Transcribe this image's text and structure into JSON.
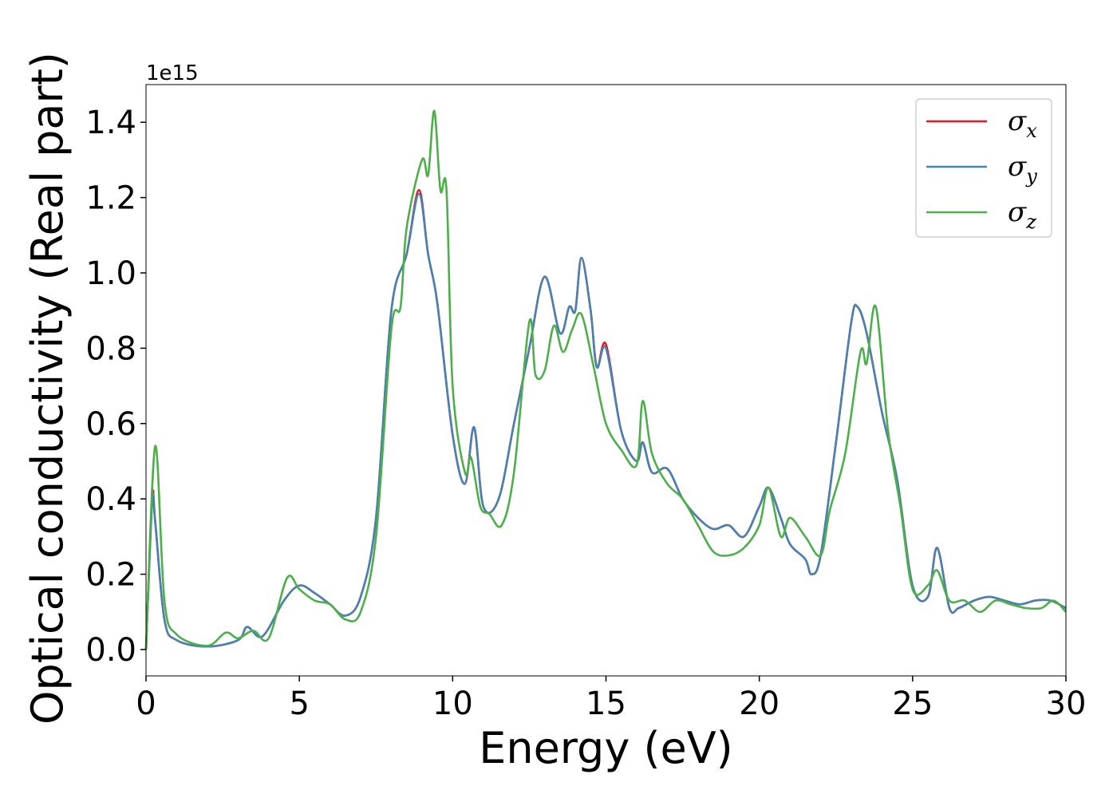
{
  "chart_data": {
    "type": "line",
    "xlabel": "Energy (eV)",
    "ylabel": "Optical conductivity (Real part)",
    "y_offset_label": "1e15",
    "xlim": [
      0,
      30
    ],
    "ylim": [
      -0.07,
      1.5
    ],
    "x_ticks": [
      0,
      5,
      10,
      15,
      20,
      25,
      30
    ],
    "x_tick_labels": [
      "0",
      "5",
      "10",
      "15",
      "20",
      "25",
      "30"
    ],
    "y_ticks": [
      0.0,
      0.2,
      0.4,
      0.6,
      0.8,
      1.0,
      1.2,
      1.4
    ],
    "y_tick_labels": [
      "0.0",
      "0.2",
      "0.4",
      "0.6",
      "0.8",
      "1.0",
      "1.2",
      "1.4"
    ],
    "grid": false,
    "legend_position": "top-right",
    "series": [
      {
        "name": "σx",
        "symbol": "σ",
        "subscript": "x",
        "color": "#e41a1c",
        "x": [
          0,
          0.2,
          0.3,
          0.6,
          1.0,
          2.0,
          3.0,
          3.3,
          3.8,
          4.5,
          5.0,
          5.5,
          6.0,
          6.5,
          7.0,
          7.5,
          8.0,
          8.5,
          8.9,
          9.2,
          9.5,
          10.0,
          10.4,
          10.7,
          11.0,
          11.5,
          12.0,
          12.5,
          13.0,
          13.5,
          13.8,
          14.0,
          14.2,
          14.5,
          14.7,
          15.0,
          15.5,
          16.0,
          16.2,
          16.5,
          17.0,
          17.5,
          18.0,
          18.5,
          19.0,
          19.5,
          20.0,
          20.3,
          20.7,
          21.0,
          21.5,
          21.7,
          22.0,
          22.5,
          23.0,
          23.2,
          23.5,
          24.0,
          24.5,
          25.0,
          25.5,
          25.8,
          26.2,
          26.5,
          27.0,
          27.5,
          28.0,
          28.5,
          29.0,
          29.5,
          30.0
        ],
        "y": [
          0.0,
          0.4,
          0.34,
          0.08,
          0.025,
          0.008,
          0.025,
          0.06,
          0.035,
          0.13,
          0.17,
          0.15,
          0.12,
          0.09,
          0.14,
          0.35,
          0.9,
          1.05,
          1.22,
          1.05,
          0.92,
          0.57,
          0.44,
          0.59,
          0.38,
          0.4,
          0.6,
          0.8,
          0.99,
          0.84,
          0.91,
          0.9,
          1.04,
          0.9,
          0.75,
          0.81,
          0.58,
          0.5,
          0.55,
          0.47,
          0.48,
          0.4,
          0.35,
          0.32,
          0.33,
          0.3,
          0.38,
          0.43,
          0.35,
          0.28,
          0.24,
          0.2,
          0.25,
          0.55,
          0.87,
          0.91,
          0.84,
          0.63,
          0.45,
          0.17,
          0.14,
          0.27,
          0.11,
          0.11,
          0.13,
          0.14,
          0.13,
          0.12,
          0.13,
          0.13,
          0.11
        ]
      },
      {
        "name": "σy",
        "symbol": "σ",
        "subscript": "y",
        "color": "#4682b4",
        "x": [
          0,
          0.2,
          0.3,
          0.6,
          1.0,
          2.0,
          3.0,
          3.3,
          3.8,
          4.5,
          5.0,
          5.5,
          6.0,
          6.5,
          7.0,
          7.5,
          8.0,
          8.5,
          8.9,
          9.2,
          9.5,
          10.0,
          10.4,
          10.7,
          11.0,
          11.5,
          12.0,
          12.5,
          13.0,
          13.5,
          13.8,
          14.0,
          14.2,
          14.5,
          14.7,
          15.0,
          15.5,
          16.0,
          16.2,
          16.5,
          17.0,
          17.5,
          18.0,
          18.5,
          19.0,
          19.5,
          20.0,
          20.3,
          20.7,
          21.0,
          21.5,
          21.7,
          22.0,
          22.5,
          23.0,
          23.2,
          23.5,
          24.0,
          24.5,
          25.0,
          25.5,
          25.8,
          26.2,
          26.5,
          27.0,
          27.5,
          28.0,
          28.5,
          29.0,
          29.5,
          30.0
        ],
        "y": [
          0.0,
          0.39,
          0.34,
          0.08,
          0.025,
          0.008,
          0.025,
          0.06,
          0.035,
          0.13,
          0.17,
          0.15,
          0.12,
          0.09,
          0.14,
          0.35,
          0.9,
          1.05,
          1.21,
          1.05,
          0.92,
          0.57,
          0.44,
          0.59,
          0.38,
          0.4,
          0.6,
          0.8,
          0.99,
          0.84,
          0.91,
          0.9,
          1.04,
          0.9,
          0.75,
          0.8,
          0.58,
          0.5,
          0.55,
          0.47,
          0.48,
          0.4,
          0.35,
          0.32,
          0.33,
          0.3,
          0.38,
          0.43,
          0.35,
          0.28,
          0.24,
          0.2,
          0.25,
          0.55,
          0.87,
          0.91,
          0.84,
          0.63,
          0.45,
          0.17,
          0.14,
          0.27,
          0.11,
          0.11,
          0.13,
          0.14,
          0.13,
          0.12,
          0.13,
          0.13,
          0.11
        ]
      },
      {
        "name": "σz",
        "symbol": "σ",
        "subscript": "z",
        "color": "#4daf4a",
        "x": [
          0,
          0.3,
          0.6,
          1.0,
          2.0,
          2.6,
          3.0,
          3.5,
          4.0,
          4.6,
          5.0,
          5.5,
          6.0,
          6.5,
          7.0,
          7.5,
          8.0,
          8.3,
          8.5,
          9.0,
          9.2,
          9.4,
          9.6,
          9.8,
          10.0,
          10.4,
          10.6,
          10.9,
          11.2,
          11.6,
          12.0,
          12.5,
          12.7,
          13.0,
          13.3,
          13.6,
          13.9,
          14.2,
          14.6,
          15.0,
          15.5,
          16.0,
          16.2,
          16.5,
          17.0,
          17.5,
          18.0,
          18.5,
          19.0,
          19.5,
          20.0,
          20.3,
          20.7,
          21.0,
          21.5,
          22.0,
          22.3,
          22.8,
          23.3,
          23.5,
          23.8,
          24.2,
          24.6,
          25.0,
          25.5,
          25.8,
          26.2,
          26.7,
          27.2,
          27.7,
          28.2,
          28.7,
          29.2,
          29.6,
          30.0
        ],
        "y": [
          0.0,
          0.54,
          0.13,
          0.04,
          0.01,
          0.045,
          0.03,
          0.05,
          0.03,
          0.19,
          0.16,
          0.13,
          0.12,
          0.08,
          0.1,
          0.3,
          0.85,
          0.91,
          1.12,
          1.3,
          1.26,
          1.43,
          1.22,
          1.22,
          0.7,
          0.47,
          0.51,
          0.38,
          0.36,
          0.33,
          0.47,
          0.87,
          0.73,
          0.74,
          0.86,
          0.79,
          0.85,
          0.89,
          0.75,
          0.6,
          0.53,
          0.49,
          0.66,
          0.52,
          0.44,
          0.4,
          0.33,
          0.26,
          0.25,
          0.27,
          0.33,
          0.43,
          0.3,
          0.35,
          0.3,
          0.25,
          0.37,
          0.52,
          0.79,
          0.76,
          0.91,
          0.58,
          0.38,
          0.16,
          0.17,
          0.21,
          0.13,
          0.13,
          0.1,
          0.13,
          0.12,
          0.11,
          0.11,
          0.13,
          0.1
        ]
      }
    ]
  }
}
